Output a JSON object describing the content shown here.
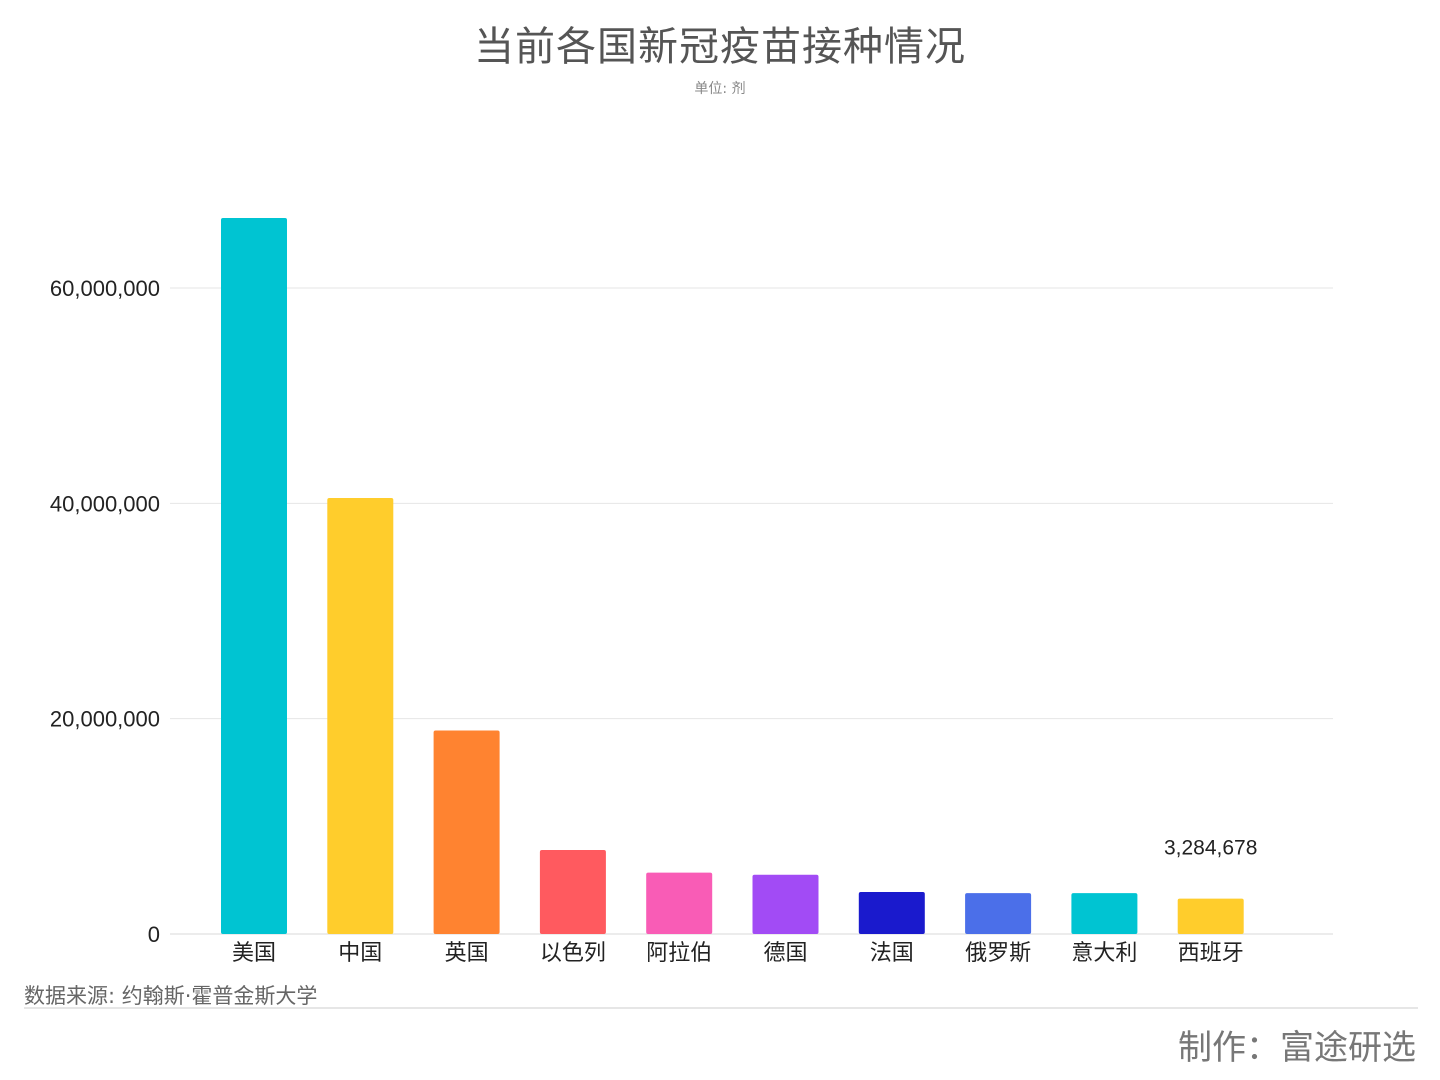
{
  "chart_data": {
    "type": "bar",
    "title": "当前各国新冠疫苗接种情况",
    "subtitle": "单位: 剂",
    "categories": [
      "美国",
      "中国",
      "英国",
      "以色列",
      "阿拉伯",
      "德国",
      "法国",
      "俄罗斯",
      "意大利",
      "西班牙"
    ],
    "values": [
      66500000,
      40500000,
      18900000,
      7800000,
      5700000,
      5500000,
      3900000,
      3800000,
      3800000,
      3284678
    ],
    "colors": [
      "#00c4d2",
      "#ffcd2c",
      "#ff8330",
      "#ff5a5f",
      "#f95cb6",
      "#a24bf5",
      "#1a1acd",
      "#4b6fe9",
      "#00c4d2",
      "#ffcd2c"
    ],
    "data_labels": [
      {
        "index": 9,
        "text": "3,284,678"
      }
    ],
    "yticks": [
      0,
      20000000,
      40000000,
      60000000
    ],
    "ytick_labels": [
      "0",
      "20,000,000",
      "40,000,000",
      "60,000,000"
    ],
    "ylim": [
      0,
      70000000
    ],
    "grid": true,
    "xlabel": "",
    "ylabel": ""
  },
  "footer": {
    "source": "数据来源: 约翰斯·霍普金斯大学",
    "credit": "制作：富途研选"
  }
}
